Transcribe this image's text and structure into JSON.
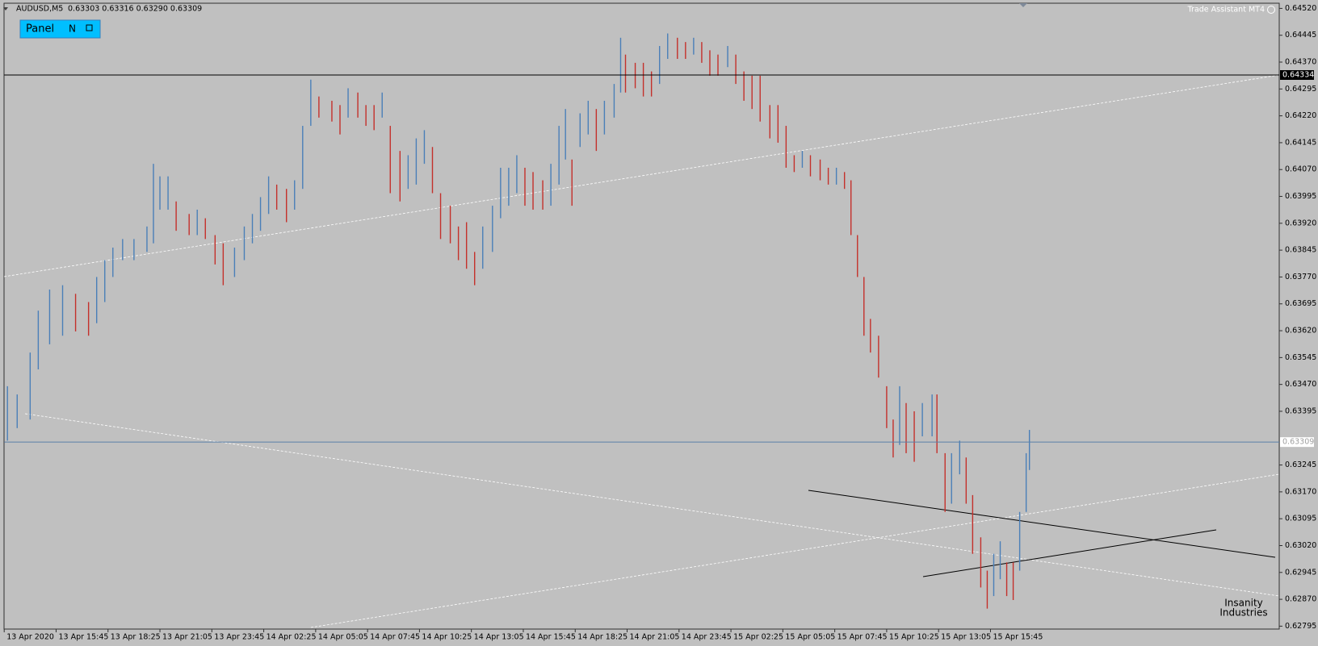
{
  "header": {
    "symbol": "AUDUSD,M5",
    "quote": "0.63303 0.63316 0.63290 0.63309",
    "indicator": "Trade Assistant MT4",
    "panel_button": "Panel",
    "panel_mode": "N",
    "watermark_top": "Insanity",
    "watermark_bottom": "Industries"
  },
  "chart_data": {
    "type": "ohlc",
    "x": [
      2,
      8,
      16,
      21,
      28,
      36,
      44,
      52,
      57,
      62,
      67,
      73,
      80,
      88,
      92,
      96,
      101,
      106,
      114,
      119,
      124,
      130,
      135,
      142,
      148,
      153,
      158,
      163,
      168,
      174,
      179,
      184,
      189,
      194,
      202,
      207,
      212,
      218,
      223,
      228,
      233,
      238,
      244,
      249,
      254,
      259,
      264,
      269,
      275,
      280,
      285,
      290,
      295,
      301,
      306,
      311,
      316,
      321,
      326,
      332,
      337,
      342,
      346,
      350,
      355,
      360,
      365,
      370,
      376,
      380,
      383,
      389,
      394,
      399,
      404,
      409,
      415,
      420,
      425,
      430,
      435,
      440,
      446,
      451,
      456,
      461,
      466,
      472,
      477,
      482,
      487,
      492,
      497,
      503,
      508,
      513,
      518,
      522,
      526,
      530,
      534,
      539,
      544,
      548,
      552,
      556,
      561,
      566,
      572,
      575,
      580,
      584,
      589,
      593,
      597,
      602,
      606,
      610,
      614,
      618,
      622,
      626,
      630,
      632
    ],
    "high": [
      0.63465,
      0.63442,
      0.63559,
      0.63676,
      0.63735,
      0.63747,
      0.63723,
      0.637,
      0.6377,
      0.63817,
      0.63852,
      0.63876,
      0.63876,
      0.63911,
      0.64086,
      0.64051,
      0.64051,
      0.63981,
      0.63946,
      0.63958,
      0.63934,
      0.63887,
      0.63864,
      0.63852,
      0.63911,
      0.63946,
      0.63993,
      0.64051,
      0.64028,
      0.64016,
      0.6404,
      0.64192,
      0.64321,
      0.64274,
      0.64262,
      0.6425,
      0.64297,
      0.64285,
      0.6425,
      0.6425,
      0.64285,
      0.64192,
      0.64122,
      0.6411,
      0.64157,
      0.6418,
      0.64133,
      0.64004,
      0.63969,
      0.63911,
      0.63923,
      0.6384,
      0.63911,
      0.63969,
      0.64075,
      0.64075,
      0.6411,
      0.64075,
      0.64063,
      0.6404,
      0.64086,
      0.64192,
      0.64239,
      0.64098,
      0.64227,
      0.64262,
      0.64239,
      0.64262,
      0.64309,
      0.64438,
      0.64391,
      0.64368,
      0.64368,
      0.64344,
      0.64415,
      0.6445,
      0.64438,
      0.64426,
      0.64438,
      0.64426,
      0.64403,
      0.64391,
      0.64415,
      0.64391,
      0.64344,
      0.64332,
      0.64332,
      0.6425,
      0.6425,
      0.64192,
      0.6411,
      0.64122,
      0.6411,
      0.64098,
      0.64075,
      0.64075,
      0.64063,
      0.6404,
      0.63887,
      0.6377,
      0.63653,
      0.63606,
      0.63465,
      0.63372,
      0.63465,
      0.63418,
      0.63395,
      0.63418,
      0.63442,
      0.63442,
      0.63278,
      0.63278,
      0.63313,
      0.63266,
      0.63161,
      0.63043,
      0.6295,
      0.62997,
      0.63032,
      0.62973,
      0.62973,
      0.63114,
      0.63278,
      0.63343
    ],
    "low": [
      0.63313,
      0.63348,
      0.63372,
      0.63512,
      0.63582,
      0.63606,
      0.63618,
      0.63606,
      0.63641,
      0.637,
      0.6377,
      0.63817,
      0.63817,
      0.6384,
      0.63864,
      0.63958,
      0.63958,
      0.63899,
      0.63887,
      0.63887,
      0.63876,
      0.63805,
      0.63747,
      0.6377,
      0.63817,
      0.63864,
      0.63899,
      0.63946,
      0.63958,
      0.63923,
      0.63958,
      0.64016,
      0.64192,
      0.64215,
      0.64204,
      0.64168,
      0.64215,
      0.64215,
      0.64192,
      0.6418,
      0.64215,
      0.64004,
      0.63981,
      0.64016,
      0.64028,
      0.64086,
      0.64004,
      0.63876,
      0.63864,
      0.63817,
      0.63793,
      0.63747,
      0.63793,
      0.6384,
      0.63934,
      0.63969,
      0.64004,
      0.63969,
      0.63958,
      0.63958,
      0.63969,
      0.64028,
      0.64098,
      0.63969,
      0.64133,
      0.64168,
      0.64122,
      0.64168,
      0.64215,
      0.64285,
      0.64285,
      0.64297,
      0.64274,
      0.64274,
      0.64309,
      0.64379,
      0.64379,
      0.64379,
      0.64391,
      0.64368,
      0.64332,
      0.64332,
      0.64356,
      0.64309,
      0.64262,
      0.64239,
      0.64204,
      0.64157,
      0.64145,
      0.64075,
      0.64063,
      0.64075,
      0.64051,
      0.6404,
      0.64028,
      0.64028,
      0.64016,
      0.63887,
      0.6377,
      0.63606,
      0.63559,
      0.63489,
      0.63348,
      0.63266,
      0.63301,
      0.63278,
      0.63254,
      0.63325,
      0.63325,
      0.63278,
      0.63114,
      0.63137,
      0.63219,
      0.63137,
      0.62997,
      0.62903,
      0.62844,
      0.62879,
      0.62926,
      0.62879,
      0.62868,
      0.6295,
      0.63114,
      0.63231
    ],
    "up_color": "#4a7fb8",
    "down_color": "#c4302b",
    "xlim": [
      0,
      786
    ],
    "xticks": [
      {
        "value": 0,
        "label": "13 Apr 2020"
      },
      {
        "value": 32,
        "label": "13 Apr 15:45"
      },
      {
        "value": 64,
        "label": "13 Apr 18:25"
      },
      {
        "value": 96,
        "label": "13 Apr 21:05"
      },
      {
        "value": 128,
        "label": "13 Apr 23:45"
      },
      {
        "value": 160,
        "label": "14 Apr 02:25"
      },
      {
        "value": 192,
        "label": "14 Apr 05:05"
      },
      {
        "value": 224,
        "label": "14 Apr 07:45"
      },
      {
        "value": 256,
        "label": "14 Apr 10:25"
      },
      {
        "value": 288,
        "label": "14 Apr 13:05"
      },
      {
        "value": 320,
        "label": "14 Apr 15:45"
      },
      {
        "value": 352,
        "label": "14 Apr 18:25"
      },
      {
        "value": 384,
        "label": "14 Apr 21:05"
      },
      {
        "value": 416,
        "label": "14 Apr 23:45"
      },
      {
        "value": 448,
        "label": "15 Apr 02:25"
      },
      {
        "value": 480,
        "label": "15 Apr 05:05"
      },
      {
        "value": 512,
        "label": "15 Apr 07:45"
      },
      {
        "value": 544,
        "label": "15 Apr 10:25"
      },
      {
        "value": 576,
        "label": "15 Apr 13:05"
      },
      {
        "value": 608,
        "label": "15 Apr 15:45"
      }
    ],
    "ylim": [
      0.62795,
      0.6452
    ],
    "yticks": [
      {
        "value": 0.6452,
        "label": "0.64520"
      },
      0.64445,
      {
        "value": 0.6437,
        "label": "0.64370"
      },
      0.64295,
      {
        "value": 0.6422,
        "label": "0.64220"
      },
      0.64145,
      {
        "value": 0.6407,
        "label": "0.64070"
      },
      0.63995,
      {
        "value": 0.6392,
        "label": "0.63920"
      },
      0.63845,
      {
        "value": 0.6377,
        "label": "0.63770"
      },
      0.63695,
      {
        "value": 0.6362,
        "label": "0.63620"
      },
      0.63545,
      {
        "value": 0.6347,
        "label": "0.63470"
      },
      0.63395,
      0.63245,
      {
        "value": 0.6317,
        "label": "0.63170"
      },
      0.63095,
      {
        "value": 0.6302,
        "label": "0.63020"
      },
      0.62945,
      {
        "value": 0.6287,
        "label": "0.62870"
      },
      0.62795
    ],
    "hlines": [
      {
        "value": 0.64334,
        "color": "#000000",
        "label_bg": "#000000",
        "label_fg": "#ffffff"
      },
      {
        "value": 0.63309,
        "color": "#5a7fa8",
        "label_bg": "#ffffff",
        "label_fg": "#a0a0a0"
      }
    ]
  }
}
